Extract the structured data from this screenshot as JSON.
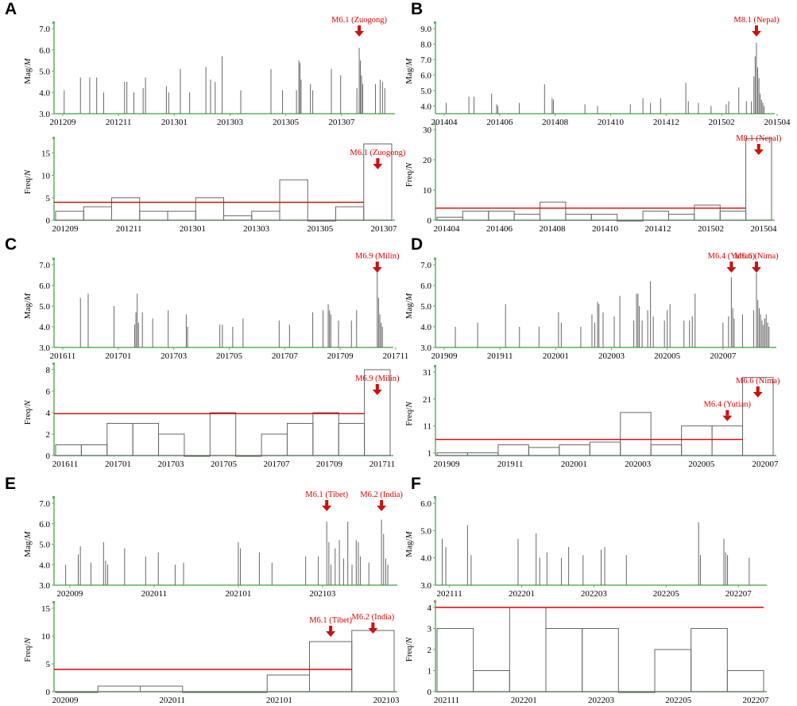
{
  "figure": {
    "panel_letters": [
      "A",
      "B",
      "C",
      "D",
      "E",
      "F"
    ],
    "colors": {
      "axis": "#5fb15f",
      "stem": "#666666",
      "stem_dense": "#111111",
      "threshold": "#e00000",
      "annotation": "#e00000",
      "arrow": "#cc1111",
      "bar_edge": "#666666"
    }
  },
  "chart_data": [
    {
      "panel": "A",
      "type": "bar",
      "subtype": "stem",
      "ylabel": "Mag/M",
      "ylim": [
        3.0,
        7.0
      ],
      "yticks": [
        "3.0",
        "4.0",
        "5.0",
        "6.0",
        "7.0"
      ],
      "xlim": [
        0,
        12
      ],
      "xticks": [
        {
          "x": 0.2,
          "label": "201209"
        },
        {
          "x": 2.2,
          "label": "201211"
        },
        {
          "x": 4.2,
          "label": "201301"
        },
        {
          "x": 6.2,
          "label": "201303"
        },
        {
          "x": 8.2,
          "label": "201305"
        },
        {
          "x": 10.2,
          "label": "201307"
        }
      ],
      "events": [
        [
          0.3,
          4.1
        ],
        [
          1.0,
          4.7
        ],
        [
          1.4,
          4.7
        ],
        [
          1.7,
          4.7
        ],
        [
          2.0,
          4.0
        ],
        [
          2.9,
          4.5
        ],
        [
          3.0,
          4.5
        ],
        [
          3.3,
          4.0
        ],
        [
          3.7,
          4.2
        ],
        [
          3.8,
          4.7
        ],
        [
          4.7,
          4.3
        ],
        [
          4.8,
          4.0
        ],
        [
          5.3,
          5.1
        ],
        [
          5.7,
          4.0
        ],
        [
          6.4,
          5.2
        ],
        [
          6.6,
          4.6
        ],
        [
          6.8,
          4.5
        ],
        [
          7.1,
          5.7
        ],
        [
          7.9,
          4.1
        ],
        [
          9.2,
          5.1
        ],
        [
          9.7,
          4.1
        ],
        [
          10.3,
          4.1
        ],
        [
          10.4,
          5.5
        ],
        [
          10.45,
          5.4
        ],
        [
          10.5,
          4.6
        ],
        [
          10.9,
          4.4
        ],
        [
          11.0,
          4.1
        ],
        [
          11.8,
          5.1
        ],
        [
          12.2,
          4.8
        ],
        [
          12.9,
          4.2
        ],
        [
          13.0,
          6.1
        ],
        [
          13.05,
          5.5
        ],
        [
          13.1,
          4.8
        ],
        [
          13.15,
          4.4
        ],
        [
          13.7,
          4.4
        ],
        [
          13.9,
          4.6
        ],
        [
          14.0,
          4.5
        ],
        [
          14.1,
          4.2
        ]
      ],
      "annotations": [
        {
          "label": "M6.1 (Zuogong)",
          "x": 13.0
        }
      ]
    },
    {
      "panel": "A",
      "type": "bar",
      "subtype": "histogram",
      "ylabel": "Freq/N",
      "ylim": [
        0,
        17
      ],
      "yticks": [
        "0",
        "5",
        "10",
        "15"
      ],
      "xticks": [
        "201209",
        "201211",
        "201301",
        "201303",
        "201305",
        "201307"
      ],
      "values": [
        2,
        3,
        5,
        2,
        2,
        5,
        1,
        2,
        9,
        0,
        3,
        17
      ],
      "threshold": 4,
      "annotations": [
        {
          "label": "M6.1 (Zuogong)",
          "bin": 11
        }
      ]
    },
    {
      "panel": "B",
      "type": "bar",
      "subtype": "stem",
      "ylabel": "Mag/M",
      "ylim": [
        3.5,
        9.0
      ],
      "yticks": [
        "4.0",
        "5.0",
        "6.0",
        "7.0",
        "8.0",
        "9.0"
      ],
      "xlim": [
        0,
        12
      ],
      "xticks": [
        {
          "x": 0.2,
          "label": "201404"
        },
        {
          "x": 2.2,
          "label": "201406"
        },
        {
          "x": 4.2,
          "label": "201408"
        },
        {
          "x": 6.2,
          "label": "201410"
        },
        {
          "x": 8.2,
          "label": "201412"
        },
        {
          "x": 10.2,
          "label": "201502"
        },
        {
          "x": 12.2,
          "label": "201504"
        }
      ],
      "events": [
        [
          0.3,
          4.2
        ],
        [
          1.2,
          4.6
        ],
        [
          1.4,
          4.6
        ],
        [
          2.1,
          4.8
        ],
        [
          2.3,
          4.1
        ],
        [
          2.35,
          4.0
        ],
        [
          3.2,
          4.2
        ],
        [
          4.2,
          5.4
        ],
        [
          4.5,
          4.5
        ],
        [
          4.55,
          4.4
        ],
        [
          5.8,
          4.1
        ],
        [
          6.3,
          4.0
        ],
        [
          7.6,
          4.1
        ],
        [
          8.1,
          4.5
        ],
        [
          8.4,
          4.2
        ],
        [
          8.8,
          4.5
        ],
        [
          9.8,
          5.5
        ],
        [
          9.9,
          4.3
        ],
        [
          10.3,
          4.2
        ],
        [
          10.8,
          4.0
        ],
        [
          11.4,
          4.1
        ],
        [
          11.5,
          4.3
        ],
        [
          11.9,
          5.2
        ],
        [
          12.2,
          4.3
        ],
        [
          12.4,
          4.3
        ],
        [
          12.5,
          5.9
        ],
        [
          12.55,
          7.2
        ],
        [
          12.6,
          8.1
        ],
        [
          12.65,
          6.5
        ],
        [
          12.7,
          5.8
        ],
        [
          12.75,
          4.8
        ],
        [
          12.8,
          4.4
        ],
        [
          12.85,
          4.2
        ],
        [
          12.9,
          4.0
        ]
      ],
      "annotations": [
        {
          "label": "M8.1 (Nepal)",
          "x": 12.6
        }
      ]
    },
    {
      "panel": "B",
      "type": "bar",
      "subtype": "histogram",
      "ylabel": "Freq/N",
      "ylim": [
        0,
        30
      ],
      "yticks": [
        "0",
        "10",
        "20",
        "30"
      ],
      "xticks": [
        "201404",
        "201406",
        "201408",
        "201410",
        "201412",
        "201502",
        "201504"
      ],
      "values": [
        1,
        3,
        3,
        2,
        6,
        2,
        2,
        0,
        3,
        2,
        5,
        3,
        27
      ],
      "threshold": 4,
      "annotations": [
        {
          "label": "M8.1 (Nepal)",
          "bin": 12
        }
      ]
    },
    {
      "panel": "C",
      "type": "bar",
      "subtype": "stem",
      "ylabel": "Mag/M",
      "ylim": [
        3.0,
        7.0
      ],
      "yticks": [
        "3.0",
        "4.0",
        "5.0",
        "6.0",
        "7.0"
      ],
      "xlim": [
        0,
        12
      ],
      "xticks": [
        {
          "x": 0.2,
          "label": "201611"
        },
        {
          "x": 2.2,
          "label": "201701"
        },
        {
          "x": 4.2,
          "label": "201703"
        },
        {
          "x": 6.2,
          "label": "201705"
        },
        {
          "x": 8.2,
          "label": "201707"
        },
        {
          "x": 10.2,
          "label": "201709"
        },
        {
          "x": 12.2,
          "label": "201711"
        }
      ],
      "events": [
        [
          0.9,
          5.4
        ],
        [
          1.2,
          5.6
        ],
        [
          2.2,
          5.0
        ],
        [
          3.0,
          4.1
        ],
        [
          3.05,
          4.7
        ],
        [
          3.1,
          5.6
        ],
        [
          3.15,
          4.2
        ],
        [
          3.3,
          4.7
        ],
        [
          3.7,
          4.4
        ],
        [
          4.3,
          4.8
        ],
        [
          5.0,
          4.6
        ],
        [
          5.05,
          4.0
        ],
        [
          6.3,
          4.1
        ],
        [
          6.4,
          4.1
        ],
        [
          6.8,
          4.0
        ],
        [
          7.2,
          4.4
        ],
        [
          8.6,
          4.3
        ],
        [
          9.0,
          4.1
        ],
        [
          9.9,
          4.7
        ],
        [
          10.3,
          4.8
        ],
        [
          10.5,
          5.1
        ],
        [
          10.55,
          4.8
        ],
        [
          10.6,
          4.6
        ],
        [
          10.9,
          4.3
        ],
        [
          11.4,
          4.3
        ],
        [
          11.6,
          4.8
        ],
        [
          12.4,
          6.9
        ],
        [
          12.45,
          5.4
        ],
        [
          12.5,
          4.6
        ],
        [
          12.55,
          4.2
        ],
        [
          12.6,
          4.0
        ]
      ],
      "annotations": [
        {
          "label": "M6.9 (Milin)",
          "x": 12.4
        }
      ]
    },
    {
      "panel": "C",
      "type": "bar",
      "subtype": "histogram",
      "ylabel": "Freq/N",
      "ylim": [
        0,
        8
      ],
      "yticks": [
        "0",
        "2",
        "4",
        "6",
        "8"
      ],
      "xticks": [
        "201611",
        "201701",
        "201703",
        "201705",
        "201707",
        "201709",
        "201711"
      ],
      "values": [
        1,
        1,
        3,
        3,
        2,
        0,
        4,
        0,
        2,
        3,
        4,
        3,
        8
      ],
      "threshold": 3.9,
      "annotations": [
        {
          "label": "M6.9 (Milin)",
          "bin": 12
        }
      ]
    },
    {
      "panel": "D",
      "type": "bar",
      "subtype": "stem",
      "ylabel": "Mag/M",
      "ylim": [
        3.0,
        7.0
      ],
      "yticks": [
        "3.0",
        "4.0",
        "5.0",
        "6.0",
        "7.0"
      ],
      "xlim": [
        0,
        12
      ],
      "xticks": [
        {
          "x": 0.2,
          "label": "201909"
        },
        {
          "x": 2.2,
          "label": "201911"
        },
        {
          "x": 4.2,
          "label": "202001"
        },
        {
          "x": 6.2,
          "label": "202003"
        },
        {
          "x": 8.2,
          "label": "202005"
        },
        {
          "x": 10.2,
          "label": "202007"
        }
      ],
      "events": [
        [
          0.6,
          4.0
        ],
        [
          1.4,
          4.2
        ],
        [
          2.4,
          5.1
        ],
        [
          2.9,
          4.0
        ],
        [
          3.6,
          4.0
        ],
        [
          4.3,
          4.7
        ],
        [
          4.4,
          4.2
        ],
        [
          5.1,
          4.0
        ],
        [
          5.5,
          4.6
        ],
        [
          5.6,
          4.2
        ],
        [
          5.7,
          5.2
        ],
        [
          5.75,
          5.1
        ],
        [
          5.9,
          4.7
        ],
        [
          6.3,
          4.5
        ],
        [
          6.5,
          5.5
        ],
        [
          7.0,
          4.3
        ],
        [
          7.1,
          5.6
        ],
        [
          7.15,
          5.6
        ],
        [
          7.2,
          5.0
        ],
        [
          7.3,
          4.3
        ],
        [
          7.5,
          4.8
        ],
        [
          7.6,
          6.2
        ],
        [
          7.7,
          4.5
        ],
        [
          8.1,
          4.3
        ],
        [
          8.2,
          4.8
        ],
        [
          8.3,
          5.1
        ],
        [
          8.8,
          4.3
        ],
        [
          9.0,
          4.3
        ],
        [
          9.1,
          4.5
        ],
        [
          9.2,
          5.6
        ],
        [
          10.2,
          4.2
        ],
        [
          10.4,
          4.5
        ],
        [
          10.5,
          6.4
        ],
        [
          10.55,
          4.9
        ],
        [
          10.6,
          4.4
        ],
        [
          10.9,
          4.6
        ],
        [
          11.3,
          4.8
        ],
        [
          11.4,
          6.6
        ],
        [
          11.45,
          5.3
        ],
        [
          11.5,
          4.9
        ],
        [
          11.55,
          4.6
        ],
        [
          11.6,
          4.3
        ],
        [
          11.65,
          4.1
        ],
        [
          11.7,
          4.4
        ],
        [
          11.75,
          4.6
        ],
        [
          11.8,
          4.2
        ],
        [
          11.85,
          4.0
        ]
      ],
      "annotations": [
        {
          "label": "M6.4 (Yutian)",
          "x": 10.5
        },
        {
          "label": "M6.6 (Nima)",
          "x": 11.4
        }
      ]
    },
    {
      "panel": "D",
      "type": "bar",
      "subtype": "histogram",
      "ylabel": "Freq/N",
      "ylim": [
        0,
        31
      ],
      "yticks": [
        "1",
        "11",
        "21",
        "31"
      ],
      "xticks": [
        "201909",
        "201911",
        "202001",
        "202003",
        "202005",
        "202007"
      ],
      "values": [
        1,
        1,
        4,
        3,
        4,
        5,
        16,
        4,
        11,
        11,
        29
      ],
      "threshold": 6,
      "annotations": [
        {
          "label": "M6.4 (Yutian)",
          "bin": 9
        },
        {
          "label": "M6.6 (Nima)",
          "bin": 10
        }
      ]
    },
    {
      "panel": "E",
      "type": "bar",
      "subtype": "stem",
      "ylabel": "Mag/M",
      "ylim": [
        3.0,
        7.0
      ],
      "yticks": [
        "3.0",
        "4.0",
        "5.0",
        "6.0",
        "7.0"
      ],
      "xlim": [
        0,
        8
      ],
      "xticks": [
        {
          "x": 0.3,
          "label": "202009"
        },
        {
          "x": 2.3,
          "label": "202011"
        },
        {
          "x": 4.3,
          "label": "202101"
        },
        {
          "x": 6.3,
          "label": "202103"
        }
      ],
      "events": [
        [
          0.2,
          4.0
        ],
        [
          0.5,
          4.5
        ],
        [
          0.55,
          4.9
        ],
        [
          0.8,
          4.1
        ],
        [
          1.1,
          5.1
        ],
        [
          1.15,
          4.2
        ],
        [
          1.2,
          4.0
        ],
        [
          1.6,
          4.8
        ],
        [
          2.1,
          4.4
        ],
        [
          2.4,
          4.6
        ],
        [
          2.8,
          4.0
        ],
        [
          3.0,
          4.1
        ],
        [
          4.3,
          5.1
        ],
        [
          4.35,
          4.8
        ],
        [
          4.8,
          4.6
        ],
        [
          5.1,
          4.1
        ],
        [
          5.9,
          4.4
        ],
        [
          6.2,
          4.4
        ],
        [
          6.4,
          6.1
        ],
        [
          6.45,
          5.1
        ],
        [
          6.5,
          4.0
        ],
        [
          6.6,
          4.8
        ],
        [
          6.7,
          5.2
        ],
        [
          6.8,
          4.3
        ],
        [
          6.9,
          6.1
        ],
        [
          7.0,
          4.0
        ],
        [
          7.1,
          5.2
        ],
        [
          7.15,
          5.1
        ],
        [
          7.2,
          4.4
        ],
        [
          7.4,
          4.1
        ],
        [
          7.7,
          6.2
        ],
        [
          7.75,
          5.5
        ],
        [
          7.8,
          4.3
        ],
        [
          7.85,
          4.0
        ]
      ],
      "annotations": [
        {
          "label": "M6.1 (Tibet)",
          "x": 6.4
        },
        {
          "label": "M6.2 (India)",
          "x": 7.7
        }
      ]
    },
    {
      "panel": "E",
      "type": "bar",
      "subtype": "histogram",
      "ylabel": "Freq/N",
      "ylim": [
        0,
        15
      ],
      "yticks": [
        "0",
        "5",
        "10",
        "15"
      ],
      "xticks": [
        "202009",
        "202011",
        "202101",
        "202103"
      ],
      "values": [
        0,
        1,
        1,
        0,
        0,
        3,
        9,
        11
      ],
      "threshold": 4,
      "annotations": [
        {
          "label": "M6.1 (Tibet)",
          "bin": 6
        },
        {
          "label": "M6.2 (India)",
          "bin": 7
        }
      ]
    },
    {
      "panel": "F",
      "type": "bar",
      "subtype": "stem",
      "ylabel": "Mag/M",
      "ylim": [
        3.0,
        6.0
      ],
      "yticks": [
        "3.0",
        "4.0",
        "5.0",
        "6.0"
      ],
      "xlim": [
        0,
        9
      ],
      "xticks": [
        {
          "x": 0.3,
          "label": "202111"
        },
        {
          "x": 2.3,
          "label": "202201"
        },
        {
          "x": 4.3,
          "label": "202203"
        },
        {
          "x": 6.3,
          "label": "202205"
        },
        {
          "x": 8.3,
          "label": "202207"
        }
      ],
      "events": [
        [
          0.1,
          4.7
        ],
        [
          0.2,
          4.4
        ],
        [
          0.8,
          5.2
        ],
        [
          0.9,
          4.1
        ],
        [
          2.2,
          4.7
        ],
        [
          2.7,
          4.9
        ],
        [
          2.8,
          4.0
        ],
        [
          3.0,
          4.2
        ],
        [
          3.4,
          4.0
        ],
        [
          3.6,
          4.4
        ],
        [
          4.0,
          4.1
        ],
        [
          4.5,
          4.3
        ],
        [
          4.6,
          4.4
        ],
        [
          5.2,
          4.1
        ],
        [
          7.2,
          5.3
        ],
        [
          7.25,
          4.1
        ],
        [
          7.9,
          4.7
        ],
        [
          7.95,
          4.2
        ],
        [
          8.0,
          4.1
        ],
        [
          8.6,
          4.0
        ]
      ],
      "annotations": []
    },
    {
      "panel": "F",
      "type": "bar",
      "subtype": "histogram",
      "ylabel": "Freq/N",
      "ylim": [
        0,
        4
      ],
      "yticks": [
        "0",
        "1",
        "2",
        "3",
        "4"
      ],
      "xticks": [
        "202111",
        "202201",
        "202203",
        "202205",
        "202207"
      ],
      "values": [
        3,
        1,
        4,
        3,
        3,
        0,
        2,
        3,
        1
      ],
      "threshold": 4,
      "annotations": []
    }
  ]
}
